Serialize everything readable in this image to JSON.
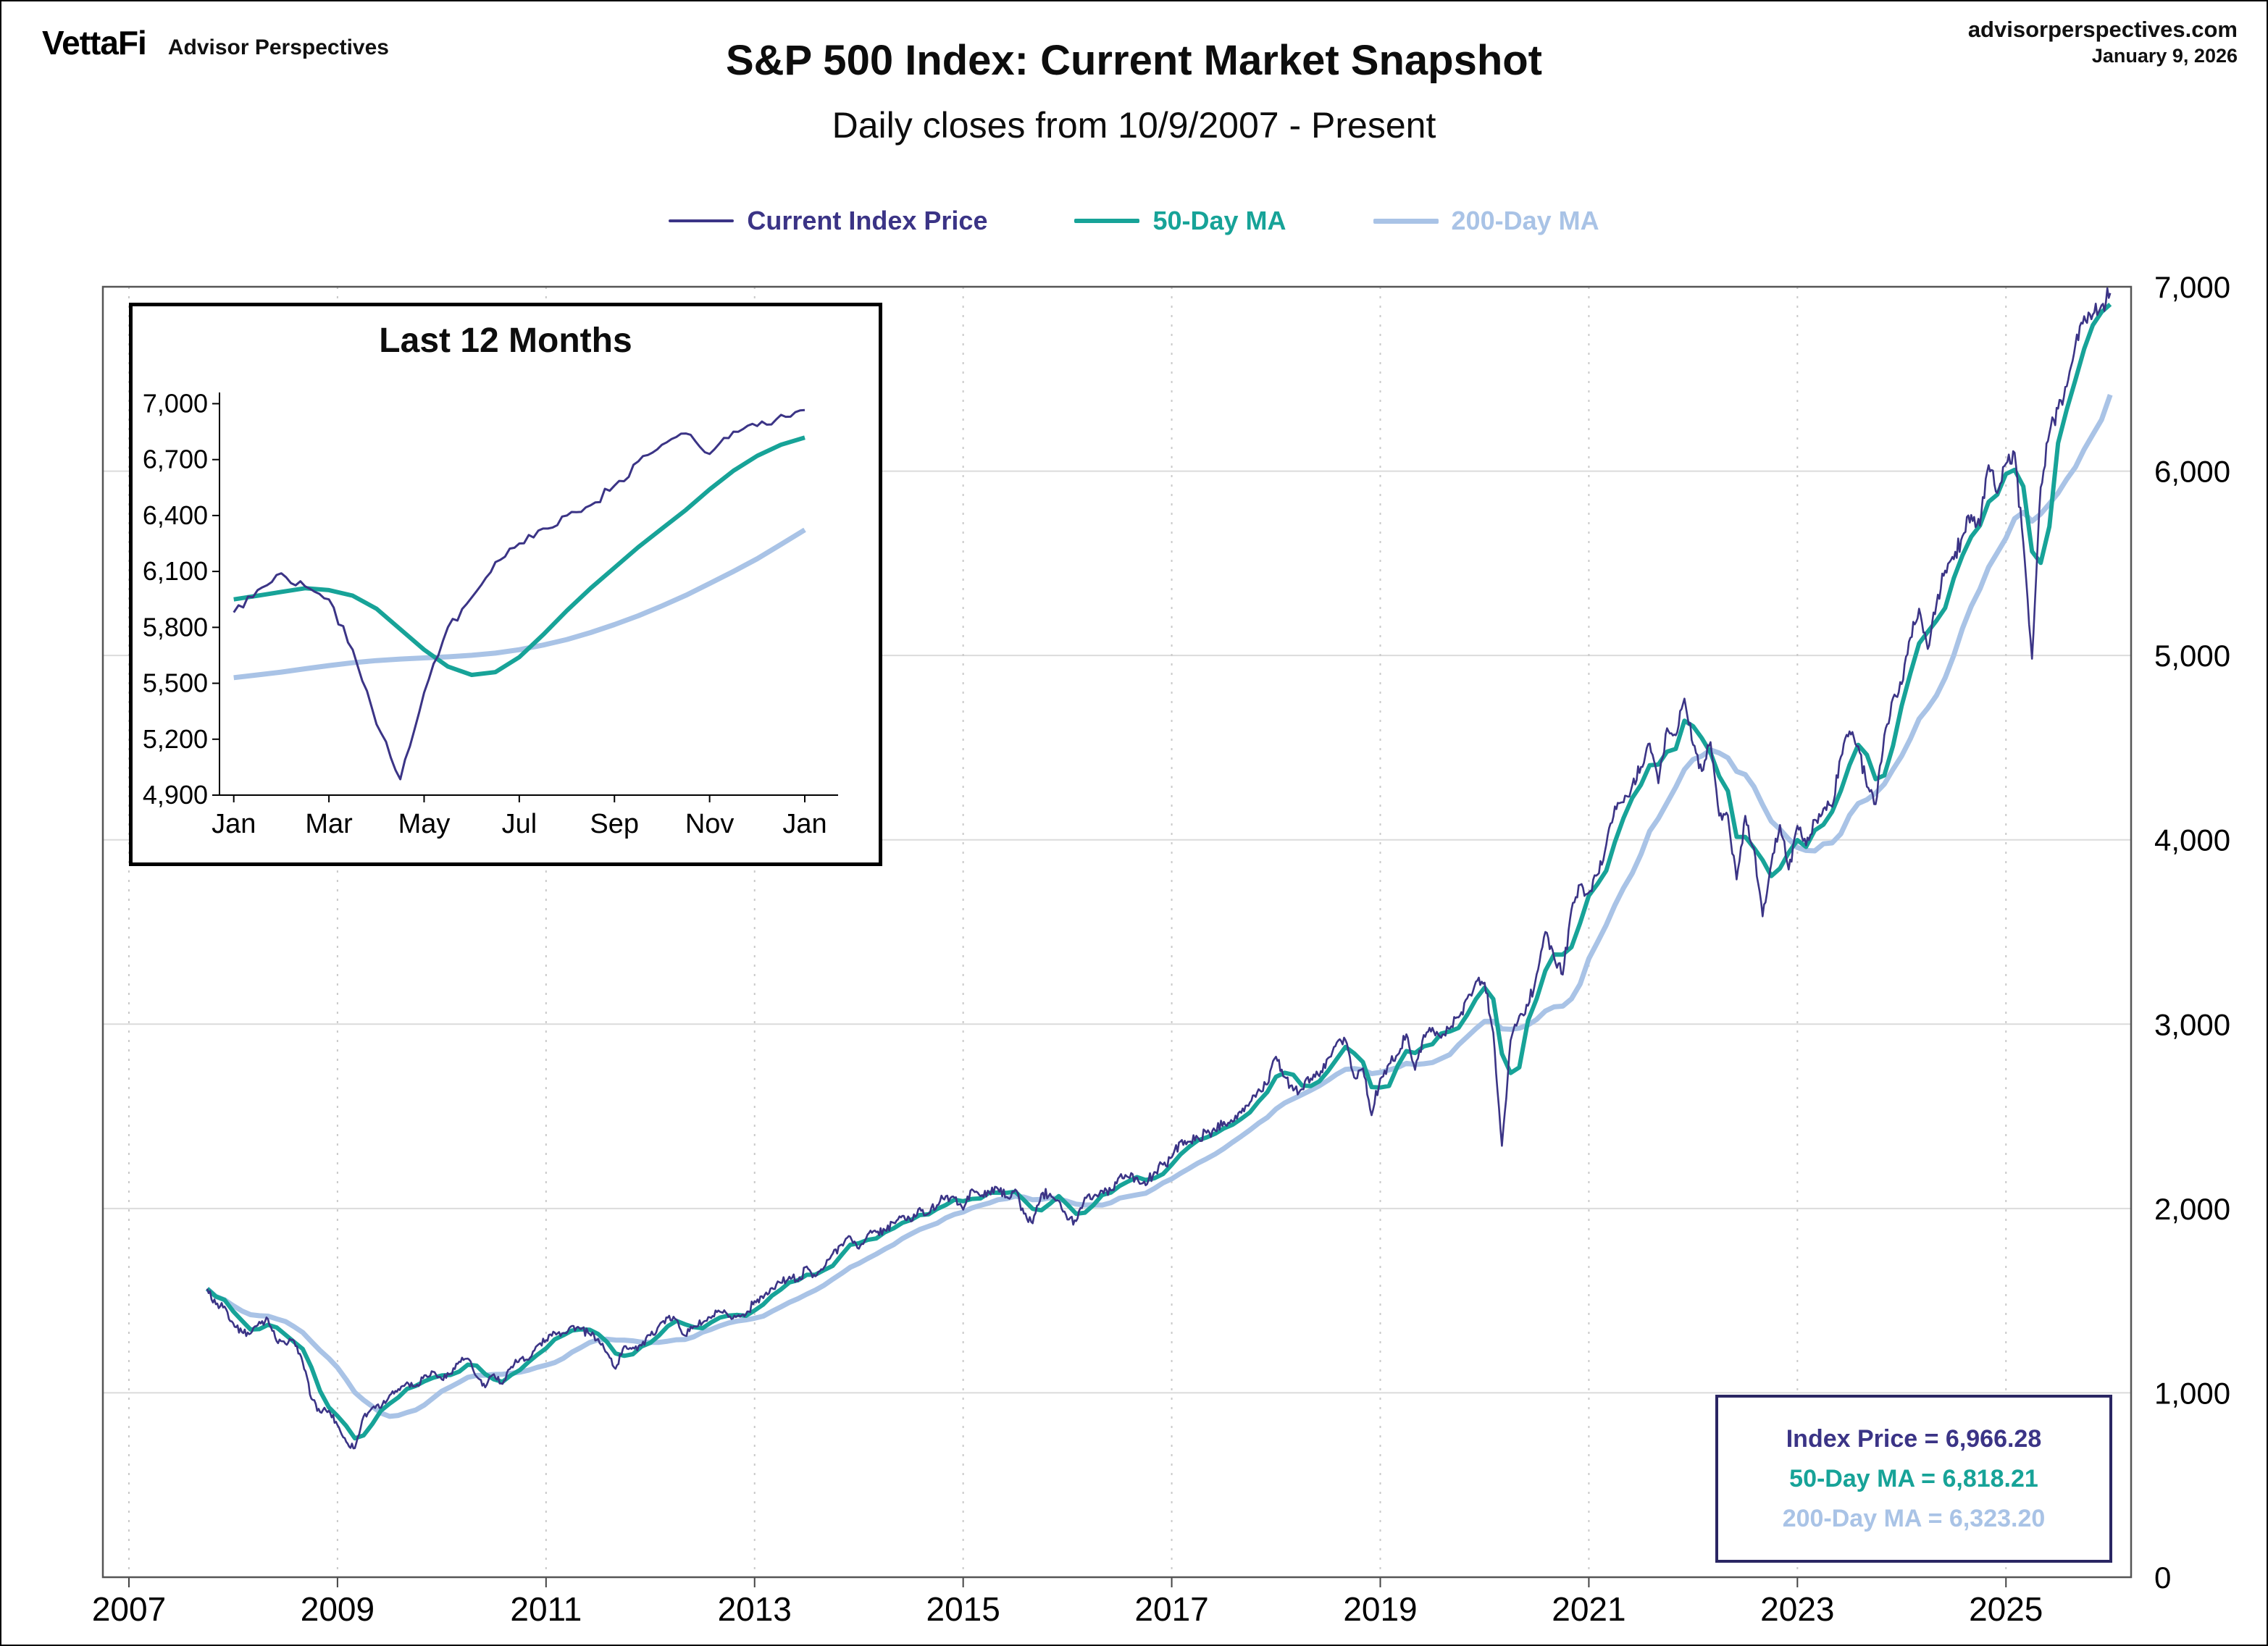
{
  "header": {
    "logo": "VettaFi",
    "logo_sub": "Advisor Perspectives",
    "site": "advisorperspectives.com",
    "date": "January 9, 2026",
    "title": "S&P 500 Index: Current Market Snapshot",
    "subtitle": "Daily closes from 10/9/2007 - Present"
  },
  "legend": {
    "items": [
      {
        "label": "Current Index Price",
        "color": "#3b3486",
        "thickness": 4
      },
      {
        "label": "50-Day MA",
        "color": "#17a398",
        "thickness": 6
      },
      {
        "label": "200-Day MA",
        "color": "#a9c3e6",
        "thickness": 7
      }
    ]
  },
  "info_box": {
    "lines": [
      {
        "text": "Index Price = 6,966.28",
        "color": "#3b3486"
      },
      {
        "text": "50-Day MA = 6,818.21",
        "color": "#17a398"
      },
      {
        "text": "200-Day MA = 6,323.20",
        "color": "#a9c3e6"
      }
    ]
  },
  "chart_data": [
    {
      "type": "line",
      "title": "S&P 500 Index: Current Market Snapshot",
      "subtitle": "Daily closes from 10/9/2007 - Present",
      "x_range": [
        2006.75,
        2026.2
      ],
      "y_range": [
        0,
        7000
      ],
      "x_ticks": [
        2007,
        2009,
        2011,
        2013,
        2015,
        2017,
        2019,
        2021,
        2023,
        2025
      ],
      "x_tick_labels": [
        "2007",
        "2009",
        "2011",
        "2013",
        "2015",
        "2017",
        "2019",
        "2021",
        "2023",
        "2025"
      ],
      "y_ticks": [
        0,
        1000,
        2000,
        3000,
        4000,
        5000,
        6000,
        7000
      ],
      "y_tick_labels": [
        "0",
        "1,000",
        "2,000",
        "3,000",
        "4,000",
        "5,000",
        "6,000",
        "7,000"
      ],
      "x_start": 2007.75,
      "x_step": 0.0833333,
      "grid": {
        "horizontal": "solid",
        "vertical": "dashed"
      },
      "series": [
        {
          "name": "Current Index Price",
          "color": "#3b3486",
          "last_value": 6966.28,
          "values": [
            1565,
            1481,
            1468,
            1378,
            1330,
            1322,
            1385,
            1400,
            1280,
            1267,
            1282,
            1166,
            968,
            896,
            903,
            825,
            735,
            700,
            872,
            919,
            919,
            987,
            1020,
            1057,
            1036,
            1095,
            1115,
            1073,
            1104,
            1169,
            1186,
            1089,
            1030,
            1101,
            1049,
            1141,
            1183,
            1180,
            1257,
            1286,
            1327,
            1325,
            1363,
            1345,
            1320,
            1292,
            1218,
            1131,
            1253,
            1246,
            1257,
            1312,
            1365,
            1408,
            1397,
            1310,
            1362,
            1379,
            1406,
            1440,
            1412,
            1416,
            1426,
            1498,
            1514,
            1569,
            1597,
            1630,
            1606,
            1685,
            1632,
            1681,
            1756,
            1805,
            1848,
            1782,
            1859,
            1872,
            1883,
            1923,
            1960,
            1930,
            2003,
            1972,
            2018,
            2067,
            2058,
            1994,
            2104,
            2067,
            2085,
            2107,
            2063,
            2103,
            1972,
            1920,
            2079,
            2080,
            2043,
            1940,
            1932,
            2059,
            2065,
            2096,
            2098,
            2173,
            2170,
            2168,
            2126,
            2198,
            2238,
            2278,
            2363,
            2362,
            2384,
            2411,
            2423,
            2470,
            2471,
            2519,
            2575,
            2647,
            2673,
            2823,
            2713,
            2640,
            2648,
            2705,
            2718,
            2816,
            2901,
            2913,
            2711,
            2760,
            2506,
            2704,
            2784,
            2834,
            2945,
            2752,
            2941,
            2980,
            2926,
            2976,
            3037,
            3140,
            3230,
            3225,
            2954,
            2340,
            2912,
            3044,
            3100,
            3271,
            3500,
            3363,
            3269,
            3621,
            3756,
            3714,
            3811,
            3972,
            4181,
            4204,
            4297,
            4395,
            4522,
            4307,
            4605,
            4567,
            4766,
            4515,
            4373,
            4530,
            4131,
            4132,
            3785,
            4130,
            3955,
            3585,
            3871,
            4080,
            3839,
            4076,
            3970,
            4109,
            4169,
            4179,
            4450,
            4588,
            4507,
            4288,
            4193,
            4567,
            4769,
            4845,
            5096,
            5254,
            5035,
            5277,
            5460,
            5522,
            5648,
            5762,
            5705,
            6032,
            5881,
            6040,
            6100,
            5612,
            4982,
            5912,
            6205,
            6339,
            6460,
            6688,
            6840,
            6849,
            6900,
            6966
          ]
        },
        {
          "name": "50-Day MA",
          "color": "#17a398",
          "derived": "moving_average_of_index",
          "window": 3,
          "last_value": 6818.21
        },
        {
          "name": "200-Day MA",
          "color": "#a9c3e6",
          "derived": "moving_average_of_index",
          "window": 10,
          "last_value": 6323.2
        }
      ]
    },
    {
      "type": "line",
      "title": "Last 12 Months",
      "x_range": [
        -0.3,
        12.7
      ],
      "y_range": [
        4900,
        7060
      ],
      "x_ticks": [
        0,
        2,
        4,
        6,
        8,
        10,
        12
      ],
      "x_tick_labels": [
        "Jan",
        "Mar",
        "May",
        "Jul",
        "Sep",
        "Nov",
        "Jan"
      ],
      "y_ticks": [
        4900,
        5200,
        5500,
        5800,
        6100,
        6400,
        6700,
        7000
      ],
      "y_tick_labels": [
        "4,900",
        "5,200",
        "5,500",
        "5,800",
        "6,100",
        "6,400",
        "6,700",
        "7,000"
      ],
      "x_start": 0,
      "x_step": 0.5,
      "grid": {
        "horizontal": "none",
        "vertical": "none"
      },
      "series": [
        {
          "name": "Current Index Price",
          "color": "#3b3486",
          "values": [
            5880,
            6000,
            6090,
            6020,
            5950,
            5680,
            5280,
            4985,
            5450,
            5800,
            5960,
            6150,
            6250,
            6330,
            6400,
            6455,
            6560,
            6690,
            6780,
            6840,
            6730,
            6850,
            6880,
            6940,
            6966
          ]
        },
        {
          "name": "50-Day MA",
          "color": "#17a398",
          "values": [
            5950,
            5970,
            5990,
            6010,
            6000,
            5970,
            5900,
            5790,
            5680,
            5590,
            5545,
            5560,
            5640,
            5760,
            5890,
            6010,
            6120,
            6230,
            6330,
            6430,
            6540,
            6640,
            6720,
            6780,
            6818
          ]
        },
        {
          "name": "200-Day MA",
          "color": "#a9c3e6",
          "values": [
            5530,
            5545,
            5560,
            5578,
            5595,
            5610,
            5622,
            5630,
            5636,
            5642,
            5650,
            5662,
            5680,
            5705,
            5735,
            5772,
            5815,
            5862,
            5915,
            5972,
            6035,
            6100,
            6168,
            6245,
            6323
          ]
        }
      ]
    }
  ]
}
